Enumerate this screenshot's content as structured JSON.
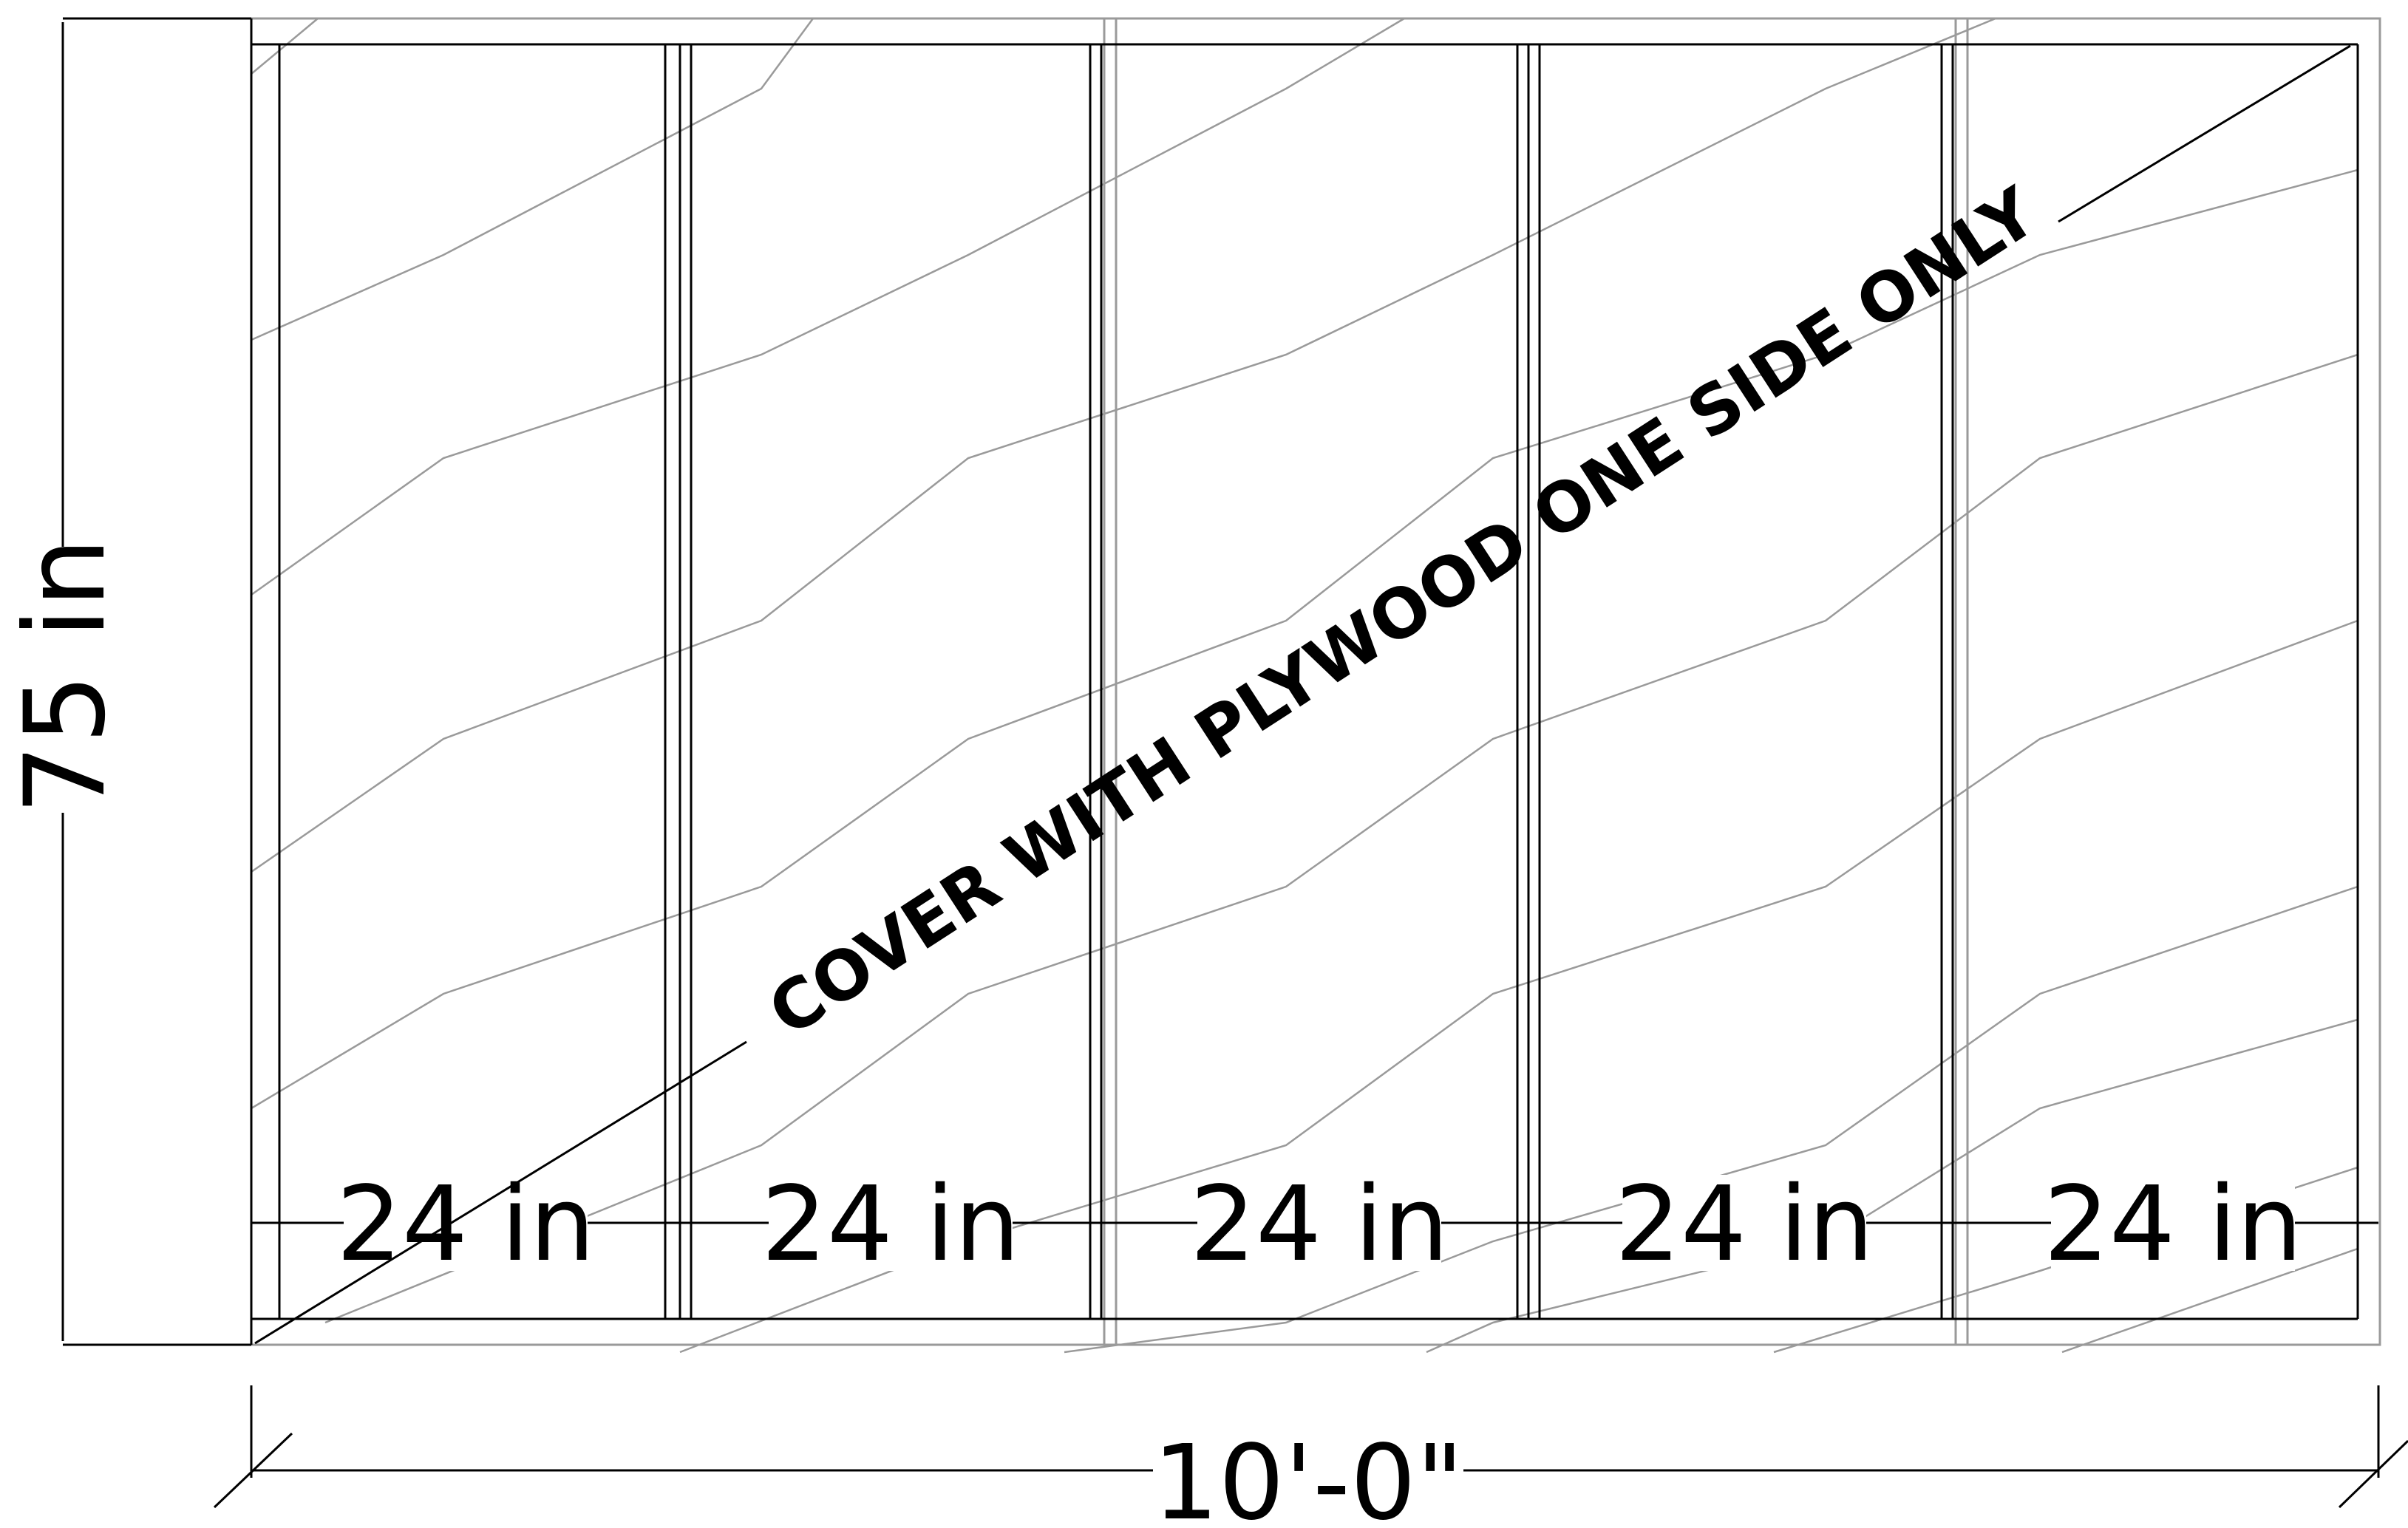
{
  "dimensions": {
    "height_label": "75 in",
    "total_width_label": "10'-0\"",
    "stud_spacing_labels": [
      "24 in",
      "24 in",
      "24 in",
      "24 in",
      "24 in"
    ]
  },
  "note": {
    "text": "COVER WITH PLYWOOD ONE SIDE ONLY"
  },
  "colors": {
    "line": "#000000",
    "grain": "#9a9a9a",
    "background": "#ffffff"
  }
}
